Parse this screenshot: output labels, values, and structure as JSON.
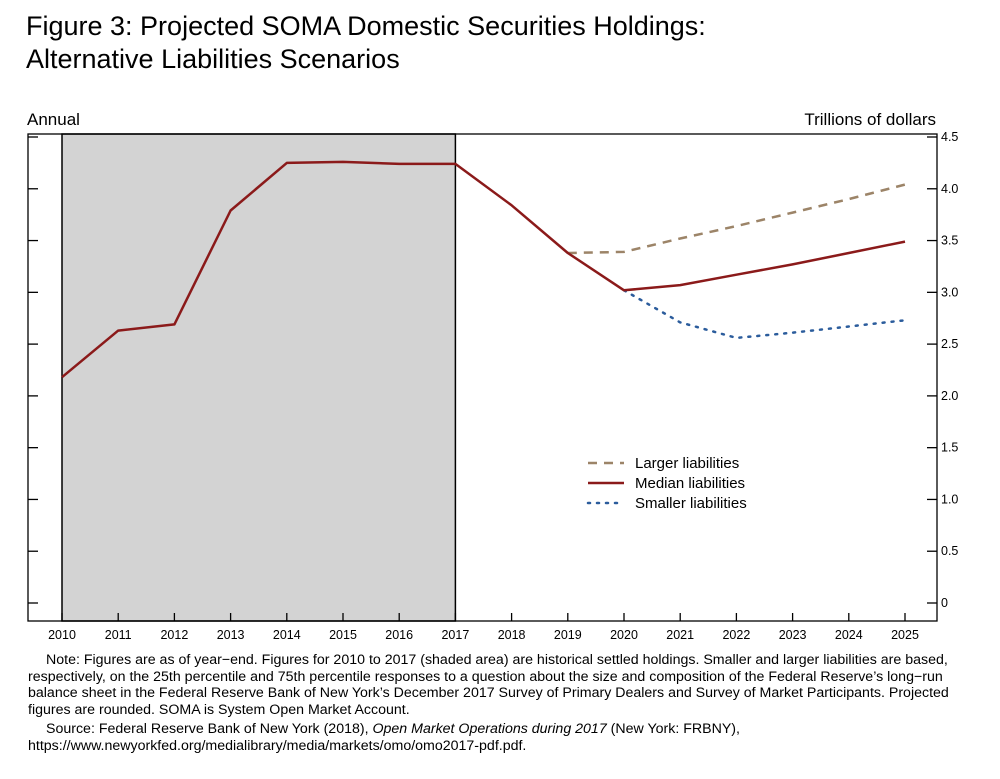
{
  "title_lines": [
    "Figure 3:  Projected SOMA Domestic Securities Holdings:",
    "Alternative Liabilities Scenarios"
  ],
  "left_corner_label": "Annual",
  "right_corner_label": "Trillions of dollars",
  "legend": {
    "larger": "Larger liabilities",
    "median": "Median liabilities",
    "smaller": "Smaller liabilities"
  },
  "note": "Note:  Figures are as of year−end. Figures for 2010 to 2017 (shaded area) are historical settled holdings. Smaller and larger liabilities are based, respectively, on the 25th percentile and 75th percentile responses to a question about the size and composition of the Federal Reserve’s long−run balance sheet in the Federal Reserve Bank of New York’s December 2017 Survey of Primary Dealers and Survey of Market Participants. Projected figures are rounded. SOMA is System Open Market Account.",
  "source": {
    "prefix": "Source:  Federal Reserve Bank of New York (2018), ",
    "italic": "Open Market Operations during 2017",
    "suffix": " (New York:  FRBNY), https://www.newyorkfed.org/medialibrary/media/markets/omo/omo2017-pdf.pdf."
  },
  "chart_data": {
    "type": "line",
    "x_ticks": [
      "2010",
      "2011",
      "2012",
      "2013",
      "2014",
      "2015",
      "2016",
      "2017",
      "2018",
      "2019",
      "2020",
      "2021",
      "2022",
      "2023",
      "2024",
      "2025"
    ],
    "y_ticks": [
      "0",
      "0.5",
      "1.0",
      "1.5",
      "2.0",
      "2.5",
      "3.0",
      "3.5",
      "4.0",
      "4.5"
    ],
    "xlim": [
      2010,
      2025
    ],
    "ylim": [
      0,
      4.5
    ],
    "shaded_region": [
      2010,
      2017
    ],
    "series": [
      {
        "name": "Median liabilities",
        "key": "median",
        "color": "#8b1a1a",
        "style": "solid",
        "x": [
          2010,
          2011,
          2012,
          2013,
          2014,
          2015,
          2016,
          2017,
          2018,
          2019,
          2020,
          2021,
          2022,
          2023,
          2024,
          2025
        ],
        "y": [
          2.18,
          2.63,
          2.69,
          3.79,
          4.25,
          4.26,
          4.24,
          4.24,
          3.84,
          3.38,
          3.02,
          3.07,
          3.17,
          3.27,
          3.38,
          3.49
        ]
      },
      {
        "name": "Larger liabilities",
        "key": "larger",
        "color": "#9c8468",
        "style": "dashed",
        "x": [
          2019,
          2020,
          2021,
          2022,
          2023,
          2024,
          2025
        ],
        "y": [
          3.38,
          3.39,
          3.52,
          3.64,
          3.77,
          3.9,
          4.04
        ]
      },
      {
        "name": "Smaller liabilities",
        "key": "smaller",
        "color": "#2b5c9c",
        "style": "dotted",
        "x": [
          2020,
          2021,
          2022,
          2023,
          2024,
          2025
        ],
        "y": [
          3.02,
          2.71,
          2.56,
          2.61,
          2.67,
          2.73
        ]
      }
    ]
  }
}
